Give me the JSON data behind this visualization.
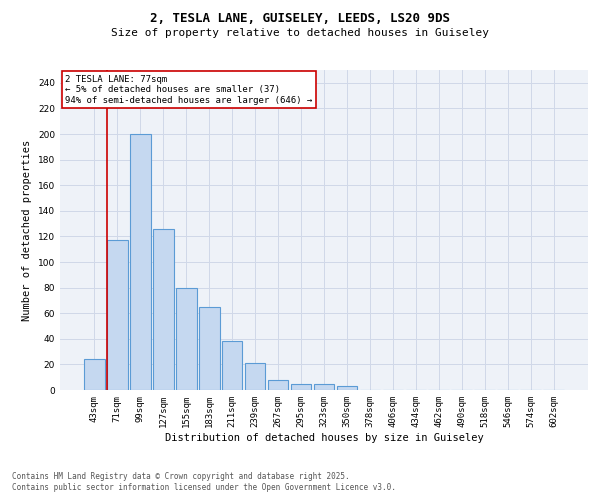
{
  "title1": "2, TESLA LANE, GUISELEY, LEEDS, LS20 9DS",
  "title2": "Size of property relative to detached houses in Guiseley",
  "xlabel": "Distribution of detached houses by size in Guiseley",
  "ylabel": "Number of detached properties",
  "categories": [
    "43sqm",
    "71sqm",
    "99sqm",
    "127sqm",
    "155sqm",
    "183sqm",
    "211sqm",
    "239sqm",
    "267sqm",
    "295sqm",
    "323sqm",
    "350sqm",
    "378sqm",
    "406sqm",
    "434sqm",
    "462sqm",
    "490sqm",
    "518sqm",
    "546sqm",
    "574sqm",
    "602sqm"
  ],
  "values": [
    24,
    117,
    200,
    126,
    80,
    65,
    38,
    21,
    8,
    5,
    5,
    3,
    0,
    0,
    0,
    0,
    0,
    0,
    0,
    0,
    0
  ],
  "bar_color": "#c5d8f0",
  "bar_edge_color": "#5b9bd5",
  "highlight_bar_index": 1,
  "highlight_line_color": "#cc0000",
  "annotation_text": "2 TESLA LANE: 77sqm\n← 5% of detached houses are smaller (37)\n94% of semi-detached houses are larger (646) →",
  "annotation_box_color": "#ffffff",
  "annotation_box_edge_color": "#cc0000",
  "annotation_fontsize": 6.5,
  "ylim": [
    0,
    250
  ],
  "yticks": [
    0,
    20,
    40,
    60,
    80,
    100,
    120,
    140,
    160,
    180,
    200,
    220,
    240
  ],
  "grid_color": "#d0d8e8",
  "background_color": "#eef2f8",
  "footer1": "Contains HM Land Registry data © Crown copyright and database right 2025.",
  "footer2": "Contains public sector information licensed under the Open Government Licence v3.0.",
  "title1_fontsize": 9,
  "title2_fontsize": 8,
  "xlabel_fontsize": 7.5,
  "ylabel_fontsize": 7.5,
  "tick_fontsize": 6.5,
  "footer_fontsize": 5.5
}
